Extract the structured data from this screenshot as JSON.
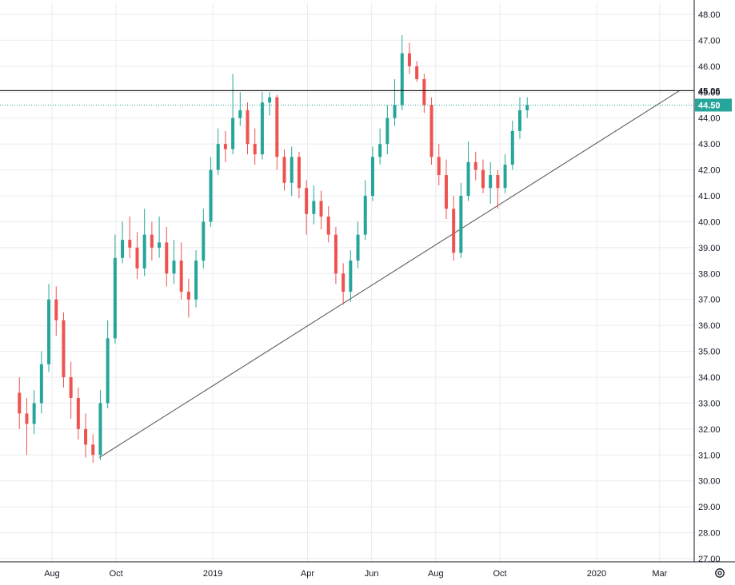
{
  "chart_data": {
    "type": "candlestick",
    "title": "",
    "xlabel": "",
    "ylabel": "",
    "ylim": [
      27.0,
      48.0
    ],
    "grid": true,
    "colors": {
      "up": "#26a69a",
      "down": "#ef5350",
      "grid": "#e9ebef",
      "axis": "#131722",
      "trendline": "#555555",
      "resistance": "#000000",
      "last_price": "#26a69a"
    },
    "y_ticks": [
      "48.00",
      "47.00",
      "46.00",
      "45.00",
      "44.00",
      "43.00",
      "42.00",
      "41.00",
      "40.00",
      "39.00",
      "38.00",
      "37.00",
      "36.00",
      "35.00",
      "34.00",
      "33.00",
      "32.00",
      "31.00",
      "30.00",
      "29.00",
      "28.00",
      "27.00"
    ],
    "y_tick_values": [
      48,
      47,
      46,
      45,
      44,
      43,
      42,
      41,
      40,
      39,
      38,
      37,
      36,
      35,
      34,
      33,
      32,
      31,
      30,
      29,
      28,
      27
    ],
    "x_ticks": [
      {
        "label": "Aug",
        "date": "2018-08-01"
      },
      {
        "label": "Oct",
        "date": "2018-10-01"
      },
      {
        "label": "2019",
        "date": "2019-01-01"
      },
      {
        "label": "Apr",
        "date": "2019-04-01"
      },
      {
        "label": "Jun",
        "date": "2019-06-01"
      },
      {
        "label": "Aug",
        "date": "2019-08-01"
      },
      {
        "label": "Oct",
        "date": "2019-10-01"
      },
      {
        "label": "2020",
        "date": "2020-01-01"
      },
      {
        "label": "Mar",
        "date": "2020-03-01"
      }
    ],
    "resistance_line": {
      "value": 45.06,
      "label": "45.06"
    },
    "last_price": {
      "value": 44.5,
      "label": "44.50"
    },
    "trendline": {
      "from": {
        "date": "2018-09-15",
        "value": 30.9
      },
      "to": {
        "date": "2020-03-20",
        "value": 45.06
      }
    },
    "series": [
      {
        "x": [
          "2018-07-01",
          "2018-07-08",
          "2018-07-15",
          "2018-07-22",
          "2018-07-29",
          "2018-08-05",
          "2018-08-12",
          "2018-08-19",
          "2018-08-26",
          "2018-09-02",
          "2018-09-09",
          "2018-09-16",
          "2018-09-23",
          "2018-09-30",
          "2018-10-07",
          "2018-10-14",
          "2018-10-21",
          "2018-10-28",
          "2018-11-04",
          "2018-11-11",
          "2018-11-18",
          "2018-11-25",
          "2018-12-02",
          "2018-12-09",
          "2018-12-16",
          "2018-12-23",
          "2018-12-30",
          "2019-01-06",
          "2019-01-13",
          "2019-01-20",
          "2019-01-27",
          "2019-02-03",
          "2019-02-10",
          "2019-02-17",
          "2019-02-24",
          "2019-03-03",
          "2019-03-10",
          "2019-03-17",
          "2019-03-24",
          "2019-03-31",
          "2019-04-07",
          "2019-04-14",
          "2019-04-21",
          "2019-04-28",
          "2019-05-05",
          "2019-05-12",
          "2019-05-19",
          "2019-05-26",
          "2019-06-02",
          "2019-06-09",
          "2019-06-16",
          "2019-06-23",
          "2019-06-30",
          "2019-07-07",
          "2019-07-14",
          "2019-07-21",
          "2019-07-28",
          "2019-08-04",
          "2019-08-11",
          "2019-08-18",
          "2019-08-25",
          "2019-09-01",
          "2019-09-08",
          "2019-09-15",
          "2019-09-22",
          "2019-09-29",
          "2019-10-06",
          "2019-10-13",
          "2019-10-20",
          "2019-10-27"
        ],
        "open": [
          33.4,
          32.6,
          32.2,
          33.0,
          34.5,
          37.0,
          36.2,
          34.0,
          33.2,
          32.0,
          31.4,
          31.0,
          33.0,
          35.5,
          38.6,
          39.3,
          39.0,
          38.2,
          39.5,
          39.0,
          39.2,
          38.0,
          38.5,
          37.3,
          37.0,
          38.5,
          40.0,
          42.0,
          43.0,
          42.8,
          44.0,
          44.3,
          43.0,
          42.6,
          44.6,
          44.8,
          42.5,
          41.5,
          42.5,
          41.3,
          40.3,
          40.8,
          40.2,
          39.5,
          38.0,
          37.3,
          38.5,
          39.5,
          41.0,
          42.5,
          43.0,
          44.0,
          44.5,
          46.5,
          46.0,
          45.5,
          44.5,
          42.5,
          41.8,
          40.5,
          38.8,
          41.0,
          42.3,
          42.0,
          41.3,
          41.8,
          41.3,
          42.2,
          43.5,
          44.3
        ],
        "close": [
          32.6,
          32.2,
          33.0,
          34.5,
          37.0,
          36.2,
          34.0,
          33.2,
          32.0,
          31.4,
          31.0,
          33.0,
          35.5,
          38.6,
          39.3,
          39.0,
          38.2,
          39.5,
          39.0,
          39.2,
          38.0,
          38.5,
          37.3,
          37.0,
          38.5,
          40.0,
          42.0,
          43.0,
          42.8,
          44.0,
          44.3,
          43.0,
          42.6,
          44.6,
          44.8,
          42.5,
          41.5,
          42.5,
          41.3,
          40.3,
          40.8,
          40.2,
          39.5,
          38.0,
          37.3,
          38.5,
          39.5,
          41.0,
          42.5,
          43.0,
          44.0,
          44.5,
          46.5,
          46.0,
          45.5,
          44.5,
          42.5,
          41.8,
          40.5,
          38.8,
          41.0,
          42.3,
          42.0,
          41.3,
          41.8,
          41.3,
          42.2,
          43.5,
          44.3,
          44.5
        ],
        "high": [
          34.0,
          33.2,
          33.5,
          35.0,
          37.6,
          37.5,
          36.5,
          34.6,
          33.6,
          32.6,
          31.8,
          33.5,
          36.2,
          39.5,
          40.0,
          40.2,
          39.6,
          40.5,
          40.0,
          40.2,
          39.8,
          39.3,
          39.2,
          37.8,
          38.9,
          40.5,
          42.5,
          43.6,
          43.5,
          45.7,
          45.0,
          44.6,
          43.6,
          45.0,
          45.0,
          44.9,
          42.8,
          42.9,
          42.7,
          41.6,
          41.4,
          41.2,
          40.6,
          39.8,
          38.4,
          38.9,
          40.0,
          41.6,
          42.9,
          43.6,
          44.5,
          45.5,
          47.2,
          46.9,
          46.2,
          45.7,
          44.8,
          43.0,
          42.4,
          41.0,
          41.5,
          43.1,
          42.7,
          42.4,
          42.3,
          42.0,
          42.6,
          43.9,
          44.8,
          44.8
        ],
        "low": [
          32.0,
          31.0,
          31.8,
          32.6,
          34.2,
          35.6,
          33.6,
          32.4,
          31.6,
          30.9,
          30.7,
          30.8,
          32.8,
          35.3,
          38.4,
          38.6,
          37.8,
          37.9,
          38.5,
          38.6,
          37.5,
          37.6,
          37.0,
          36.3,
          36.7,
          38.2,
          39.8,
          41.8,
          42.3,
          42.6,
          43.7,
          42.6,
          42.2,
          42.4,
          44.1,
          42.0,
          41.2,
          41.0,
          40.9,
          39.5,
          39.9,
          39.7,
          39.2,
          37.6,
          36.8,
          36.9,
          38.2,
          39.3,
          40.8,
          42.2,
          42.6,
          43.7,
          44.3,
          45.7,
          45.4,
          44.2,
          42.2,
          41.4,
          40.1,
          38.5,
          38.6,
          40.8,
          41.6,
          41.1,
          40.7,
          40.5,
          41.1,
          42.0,
          43.2,
          44.0
        ]
      }
    ]
  }
}
